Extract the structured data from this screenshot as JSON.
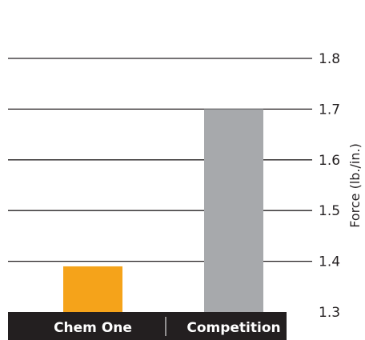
{
  "chart_data": {
    "type": "bar",
    "categories": [
      "Chem One",
      "Competition"
    ],
    "values": [
      1.39,
      1.7
    ],
    "ylabel": "Force (lb./in.)",
    "ylim": [
      1.3,
      1.8
    ],
    "yticks": [
      1.3,
      1.4,
      1.5,
      1.6,
      1.7,
      1.8
    ],
    "ytick_labels": [
      "1.3",
      "1.4",
      "1.5",
      "1.6",
      "1.7",
      "1.8"
    ],
    "grid": true,
    "colors": {
      "bars": [
        "#f5a31a",
        "#a7a9ac"
      ],
      "category_band": "#231f20",
      "grid": "#231f20"
    }
  }
}
